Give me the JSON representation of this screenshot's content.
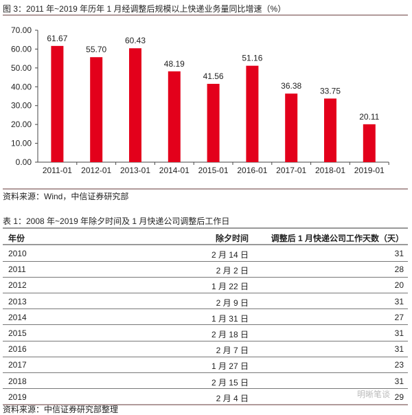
{
  "figure": {
    "title": "图 3：2011 年~2019 年历年 1 月经调整后规模以上快递业务量同比增速（%）",
    "source": "资料来源：Wind，中信证券研究部"
  },
  "chart_data": {
    "type": "bar",
    "categories": [
      "2011-01",
      "2012-01",
      "2013-01",
      "2014-01",
      "2015-01",
      "2016-01",
      "2017-01",
      "2018-01",
      "2019-01"
    ],
    "values": [
      61.67,
      55.7,
      60.43,
      48.19,
      41.56,
      51.16,
      36.38,
      33.75,
      20.11
    ],
    "ylim": [
      0,
      70
    ],
    "yticks": [
      "0.00",
      "10.00",
      "20.00",
      "30.00",
      "40.00",
      "50.00",
      "60.00",
      "70.00"
    ],
    "bar_color": "#e3001b",
    "grid": false,
    "labels": [
      "61.67",
      "55.70",
      "60.43",
      "48.19",
      "41.56",
      "51.16",
      "36.38",
      "33.75",
      "20.11"
    ]
  },
  "table": {
    "title": "表 1：2008 年~2019 年除夕时间及 1 月快递公司调整后工作日",
    "headers": [
      "年份",
      "除夕时间",
      "调整后 1 月快递公司工作天数（天）"
    ],
    "rows": [
      [
        "2010",
        "2 月 14 日",
        "31"
      ],
      [
        "2011",
        "2 月 2 日",
        "28"
      ],
      [
        "2012",
        "1 月 22 日",
        "20"
      ],
      [
        "2013",
        "2 月 9 日",
        "31"
      ],
      [
        "2014",
        "1 月 31 日",
        "27"
      ],
      [
        "2015",
        "2 月 18 日",
        "31"
      ],
      [
        "2016",
        "2 月 7 日",
        "31"
      ],
      [
        "2017",
        "1 月 27 日",
        "23"
      ],
      [
        "2018",
        "2 月 15 日",
        "31"
      ],
      [
        "2019",
        "2 月 4 日",
        "29"
      ]
    ],
    "source": "资料来源：中信证券研究部整理"
  },
  "watermark": "明晰笔谈"
}
